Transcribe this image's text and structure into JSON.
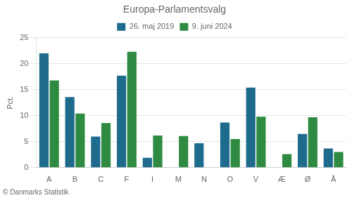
{
  "chart_data": {
    "type": "bar",
    "title": "Europa-Parlamentsvalg",
    "ylabel": "Pct.",
    "footer": "© Danmarks Statistik",
    "categories": [
      "A",
      "B",
      "C",
      "F",
      "I",
      "M",
      "N",
      "O",
      "V",
      "Æ",
      "Ø",
      "Å"
    ],
    "series": [
      {
        "name": "26. maj 2019",
        "color": "#1F6B8E",
        "values": [
          22.0,
          13.6,
          6.0,
          17.7,
          1.9,
          0.0,
          4.7,
          8.7,
          15.4,
          0.0,
          6.5,
          3.7
        ]
      },
      {
        "name": "9. juni 2024",
        "color": "#2E8B41",
        "values": [
          16.8,
          10.4,
          8.6,
          22.3,
          6.2,
          6.1,
          0.0,
          5.5,
          9.8,
          2.6,
          9.7,
          3.0
        ]
      }
    ],
    "ylim": [
      0,
      25
    ],
    "yticks": [
      0,
      5,
      10,
      15,
      20,
      25
    ],
    "grid": true,
    "legend": "top"
  }
}
